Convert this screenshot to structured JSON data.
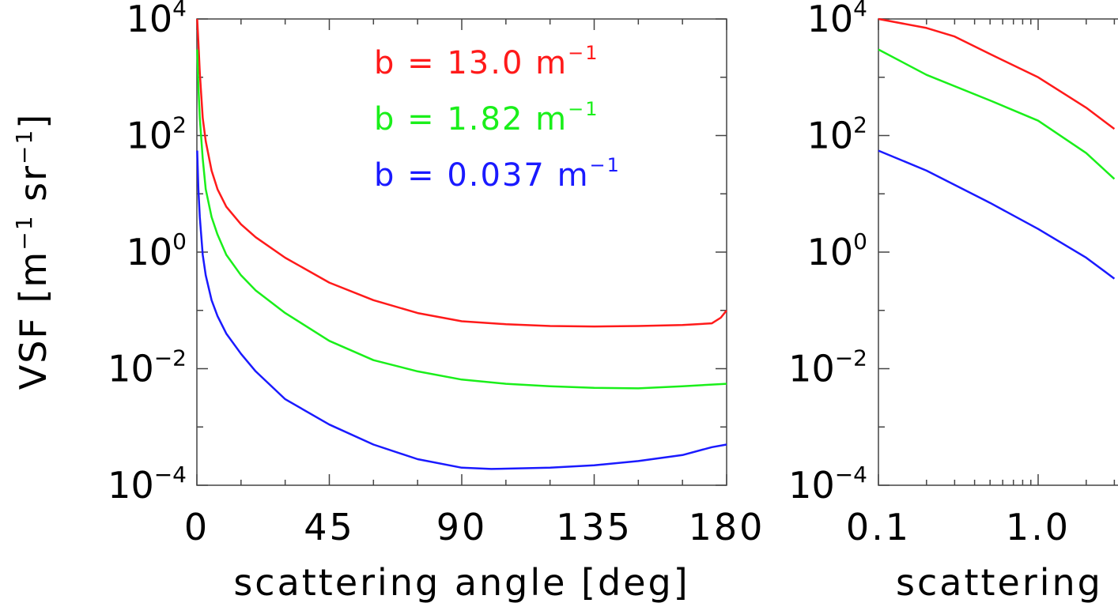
{
  "chart_data": [
    {
      "type": "line",
      "xlabel": "scattering angle [deg]",
      "ylabel": "VSF [m",
      "ylabel_sup1": "−1",
      "ylabel_mid": " sr",
      "ylabel_sup2": "−1",
      "ylabel_end": "]",
      "xlim": [
        0,
        180
      ],
      "ylim": [
        0.0001,
        10000
      ],
      "yscale": "log",
      "x_ticks": [
        {
          "value": 0,
          "label": "0"
        },
        {
          "value": 45,
          "label": "45"
        },
        {
          "value": 90,
          "label": "90"
        },
        {
          "value": 135,
          "label": "135"
        },
        {
          "value": 180,
          "label": "180"
        }
      ],
      "y_ticks": [
        {
          "value": 0.0001,
          "base": "10",
          "exp": "−4"
        },
        {
          "value": 0.01,
          "base": "10",
          "exp": "−2"
        },
        {
          "value": 1,
          "base": "10",
          "exp": "0"
        },
        {
          "value": 100,
          "base": "10",
          "exp": "2"
        },
        {
          "value": 10000,
          "base": "10",
          "exp": "4"
        }
      ],
      "legend": "top-right",
      "series": [
        {
          "name": "b = 13.0 m",
          "name_sup": "−1",
          "color": "#ff1a1a",
          "x": [
            0.1,
            0.5,
            1,
            2,
            3,
            5,
            7,
            10,
            15,
            20,
            30,
            45,
            60,
            75,
            90,
            105,
            120,
            135,
            150,
            165,
            175,
            178,
            180
          ],
          "y": [
            10000,
            4000,
            1200,
            200,
            80,
            25,
            12,
            6,
            3,
            1.8,
            0.8,
            0.3,
            0.15,
            0.09,
            0.065,
            0.058,
            0.054,
            0.053,
            0.054,
            0.056,
            0.06,
            0.075,
            0.1
          ]
        },
        {
          "name": "b = 1.82 m",
          "name_sup": "−1",
          "color": "#1aef1a",
          "x": [
            0.1,
            0.5,
            1,
            2,
            3,
            5,
            7,
            10,
            15,
            20,
            30,
            45,
            60,
            75,
            90,
            105,
            120,
            135,
            150,
            165,
            180
          ],
          "y": [
            3000,
            700,
            200,
            40,
            12,
            4,
            2,
            0.9,
            0.4,
            0.22,
            0.09,
            0.03,
            0.014,
            0.009,
            0.0065,
            0.0055,
            0.005,
            0.0047,
            0.0046,
            0.005,
            0.0055
          ]
        },
        {
          "name": "b = 0.037 m",
          "name_sup": "−1",
          "color": "#1a1aff",
          "x": [
            0.1,
            0.5,
            1,
            2,
            3,
            5,
            7,
            10,
            15,
            20,
            30,
            45,
            60,
            75,
            90,
            100,
            120,
            135,
            150,
            165,
            175,
            180
          ],
          "y": [
            55,
            12,
            4,
            0.9,
            0.4,
            0.15,
            0.08,
            0.04,
            0.018,
            0.009,
            0.003,
            0.0011,
            0.0005,
            0.00028,
            0.0002,
            0.00019,
            0.0002,
            0.00022,
            0.00026,
            0.00033,
            0.00045,
            0.0005
          ]
        }
      ]
    },
    {
      "type": "line",
      "xlabel": "scattering",
      "xscale": "log",
      "yscale": "log",
      "ylim": [
        0.0001,
        10000
      ],
      "x_ticks": [
        {
          "value": 0.1,
          "label": "0.1"
        },
        {
          "value": 1.0,
          "label": "1.0"
        }
      ],
      "y_ticks": [
        {
          "value": 0.0001,
          "base": "10",
          "exp": "−4"
        },
        {
          "value": 0.01,
          "base": "10",
          "exp": "−2"
        },
        {
          "value": 1,
          "base": "10",
          "exp": "0"
        },
        {
          "value": 100,
          "base": "10",
          "exp": "2"
        },
        {
          "value": 10000,
          "base": "10",
          "exp": "4"
        }
      ],
      "series": [
        {
          "color": "#ff1a1a",
          "x": [
            0.1,
            0.2,
            0.3,
            0.5,
            1,
            2,
            3
          ],
          "y": [
            10000,
            7000,
            5000,
            2500,
            1000,
            300,
            130
          ]
        },
        {
          "color": "#1aef1a",
          "x": [
            0.1,
            0.2,
            0.5,
            1,
            2,
            3
          ],
          "y": [
            3000,
            1100,
            400,
            180,
            50,
            18
          ]
        },
        {
          "color": "#1a1aff",
          "x": [
            0.1,
            0.2,
            0.5,
            1,
            2,
            3
          ],
          "y": [
            55,
            25,
            7,
            2.5,
            0.8,
            0.35
          ]
        }
      ]
    }
  ]
}
